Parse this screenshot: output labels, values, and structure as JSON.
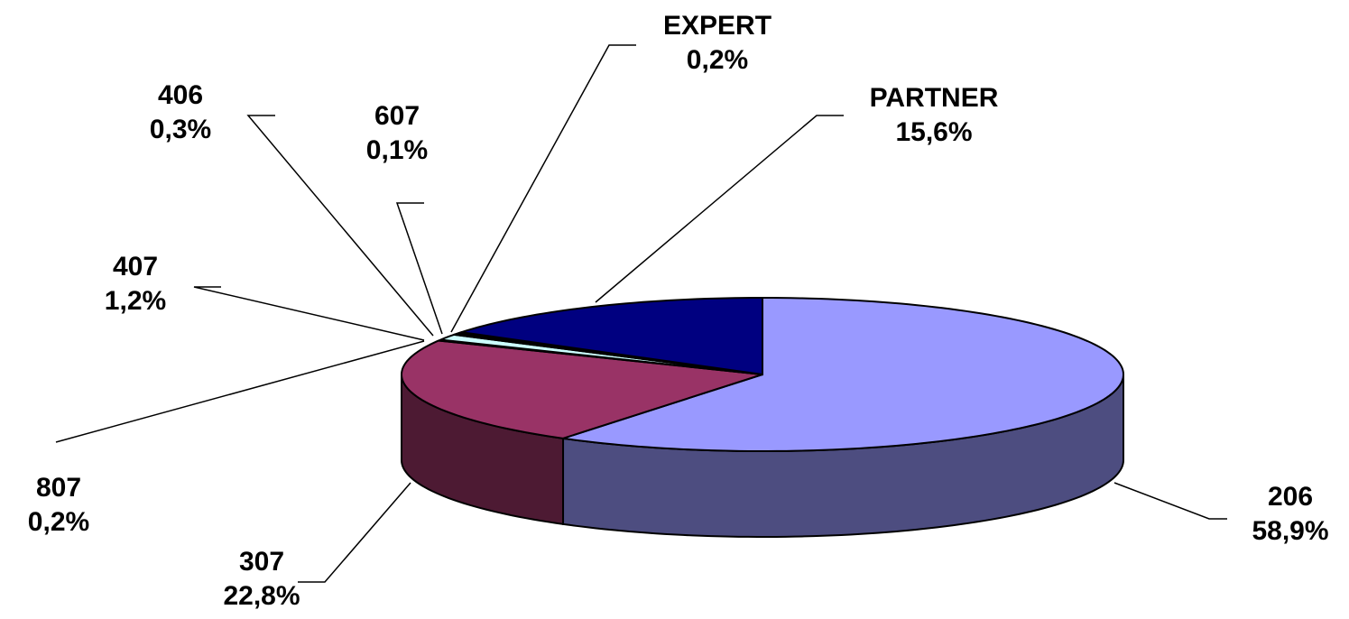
{
  "chart_data": {
    "type": "pie3d",
    "categories": [
      "206",
      "307",
      "807",
      "407",
      "406",
      "607",
      "EXPERT",
      "PARTNER"
    ],
    "values": [
      58.9,
      22.8,
      0.2,
      1.2,
      0.3,
      0.1,
      0.2,
      15.6
    ],
    "value_labels": [
      "58,9%",
      "22,8%",
      "0,2%",
      "1,2%",
      "0,3%",
      "0,1%",
      "0,2%",
      "15,6%"
    ],
    "colors": [
      "#9999ff",
      "#993366",
      "#ffffcc",
      "#ccffff",
      "#660066",
      "#ff8080",
      "#0066cc",
      "#000080"
    ]
  }
}
